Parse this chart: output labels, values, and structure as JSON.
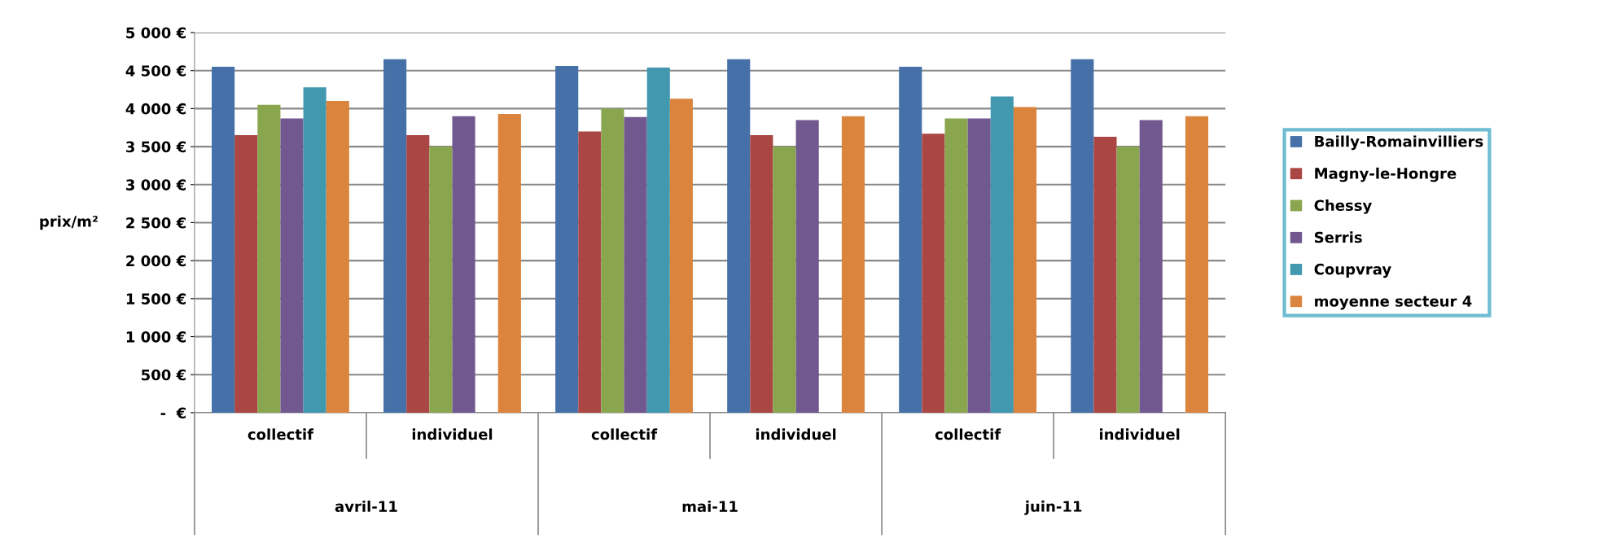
{
  "chart_data": {
    "type": "bar",
    "ylabel": "prix/m²",
    "categories": [
      "collectif",
      "individuel",
      "collectif",
      "individuel",
      "collectif",
      "individuel"
    ],
    "annotations": [
      "avril-11",
      "mai-11",
      "juin-11"
    ],
    "series": [
      {
        "name": "Bailly-Romainvilliers",
        "color": "#4571a8",
        "values": [
          4550,
          4650,
          4560,
          4650,
          4550,
          4650
        ]
      },
      {
        "name": "Magny-le-Hongre",
        "color": "#aa4643",
        "values": [
          3650,
          3650,
          3700,
          3650,
          3670,
          3630
        ]
      },
      {
        "name": "Chessy",
        "color": "#89a54e",
        "values": [
          4050,
          3500,
          4000,
          3500,
          3870,
          3500
        ]
      },
      {
        "name": "Serris",
        "color": "#71588f",
        "values": [
          3870,
          3900,
          3890,
          3850,
          3870,
          3850
        ]
      },
      {
        "name": "Coupvray",
        "color": "#4198af",
        "values": [
          4280,
          null,
          4540,
          null,
          4160,
          null
        ]
      },
      {
        "name": "moyenne secteur 4",
        "color": "#db843d",
        "values": [
          4100,
          3930,
          4130,
          3900,
          4020,
          3900
        ]
      }
    ],
    "ylim": [
      0,
      5000
    ],
    "yticks": [
      {
        "value": 0,
        "label": "-  €"
      },
      {
        "value": 500,
        "label": "500 €"
      },
      {
        "value": 1000,
        "label": "1 000 €"
      },
      {
        "value": 1500,
        "label": "1 500 €"
      },
      {
        "value": 2000,
        "label": "2 000 €"
      },
      {
        "value": 2500,
        "label": "2 500 €"
      },
      {
        "value": 3000,
        "label": "3 000 €"
      },
      {
        "value": 3500,
        "label": "3 500 €"
      },
      {
        "value": 4000,
        "label": "4 000 €"
      },
      {
        "value": 4500,
        "label": "4 500 €"
      },
      {
        "value": 5000,
        "label": "5 000 €"
      }
    ],
    "grid": "y",
    "legend": "right"
  }
}
